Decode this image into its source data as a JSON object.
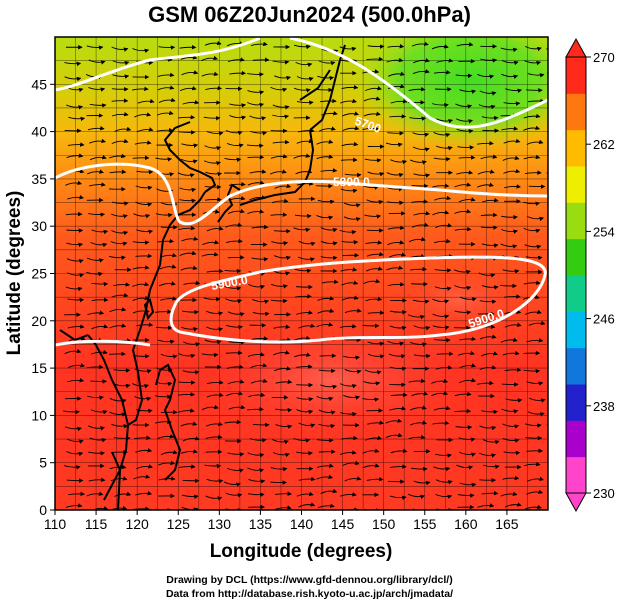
{
  "title": "GSM 06Z20Jun2024 (500.0hPa)",
  "x_axis": {
    "label": "Longitude (degrees)",
    "ticks": [
      "110",
      "115",
      "120",
      "125",
      "130",
      "135",
      "140",
      "145",
      "150",
      "155",
      "160",
      "165"
    ],
    "range": [
      110,
      170
    ]
  },
  "y_axis": {
    "label": "Latitude  (degrees)",
    "ticks": [
      "0",
      "5",
      "10",
      "15",
      "20",
      "25",
      "30",
      "35",
      "40",
      "45"
    ],
    "range": [
      0,
      50
    ]
  },
  "colorbar": {
    "ticks": [
      "270",
      "262",
      "254",
      "246",
      "238",
      "230"
    ],
    "range": [
      230,
      270
    ],
    "colors": [
      "#ff44cc",
      "#aa00cc",
      "#2222cc",
      "#1177dd",
      "#00bbee",
      "#11cc88",
      "#33cc11",
      "#99dd11",
      "#eeee00",
      "#ffbb00",
      "#ff7711",
      "#ff2a1a"
    ]
  },
  "contours": [
    {
      "label": "5800.0"
    },
    {
      "label": "5900.0"
    },
    {
      "label": "5900.0"
    },
    {
      "label": "5700"
    }
  ],
  "credits": {
    "line1": "Drawing by DCL (https://www.gfd-dennou.org/library/dcl/)",
    "line2": "Data from http://database.rish.kyoto-u.ac.jp/arch/jmadata/"
  }
}
